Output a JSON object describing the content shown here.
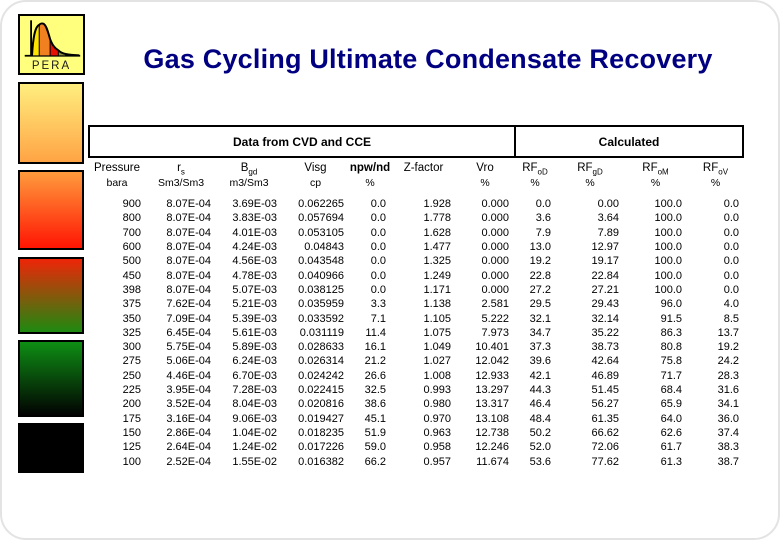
{
  "slide": {
    "title": "Gas Cycling Ultimate Condensate Recovery",
    "title_color": "#000080"
  },
  "logo": {
    "label": "PERA",
    "background": "#FFFF7D",
    "slice_colors": [
      "#FFE400",
      "#F08020",
      "#E81000",
      "#8A8A40"
    ]
  },
  "sidebar": {
    "bars": [
      {
        "from": "#FFEE7E",
        "to": "#FFA445"
      },
      {
        "from": "#FF9B3C",
        "to": "#FF1503"
      },
      {
        "from": "#EE2508",
        "to": "#1E8A10"
      },
      {
        "from": "#0E8E14",
        "to": "#020202"
      },
      {
        "from": "#000000",
        "to": "#000000"
      }
    ]
  },
  "table": {
    "group_headers": {
      "left": "Data from CVD and CCE",
      "right": "Calculated"
    },
    "columns": [
      {
        "base": "Pressure",
        "sub": "",
        "unit": "bara",
        "bold": false
      },
      {
        "base": "r",
        "sub": "s",
        "unit": "Sm3/Sm3",
        "bold": false
      },
      {
        "base": "B",
        "sub": "gd",
        "unit": "m3/Sm3",
        "bold": false
      },
      {
        "base": "Visg",
        "sub": "",
        "unit": "cp",
        "bold": false
      },
      {
        "base": "npw/nd",
        "sub": "",
        "unit": "%",
        "bold": true
      },
      {
        "base": "Z-factor",
        "sub": "",
        "unit": "",
        "bold": false
      },
      {
        "base": "Vro",
        "sub": "",
        "unit": "%",
        "bold": false
      },
      {
        "base": "RF",
        "sub": "oD",
        "unit": "%",
        "bold": false
      },
      {
        "base": "RF",
        "sub": "gD",
        "unit": "%",
        "bold": false
      },
      {
        "base": "RF",
        "sub": "oM",
        "unit": "%",
        "bold": false
      },
      {
        "base": "RF",
        "sub": "oV",
        "unit": "%",
        "bold": false
      }
    ],
    "rows": [
      [
        "900",
        "8.07E-04",
        "3.69E-03",
        "0.062265",
        "0.0",
        "1.928",
        "0.000",
        "0.0",
        "0.00",
        "100.0",
        "0.0"
      ],
      [
        "800",
        "8.07E-04",
        "3.83E-03",
        "0.057694",
        "0.0",
        "1.778",
        "0.000",
        "3.6",
        "3.64",
        "100.0",
        "0.0"
      ],
      [
        "700",
        "8.07E-04",
        "4.01E-03",
        "0.053105",
        "0.0",
        "1.628",
        "0.000",
        "7.9",
        "7.89",
        "100.0",
        "0.0"
      ],
      [
        "600",
        "8.07E-04",
        "4.24E-03",
        "0.04843",
        "0.0",
        "1.477",
        "0.000",
        "13.0",
        "12.97",
        "100.0",
        "0.0"
      ],
      [
        "500",
        "8.07E-04",
        "4.56E-03",
        "0.043548",
        "0.0",
        "1.325",
        "0.000",
        "19.2",
        "19.17",
        "100.0",
        "0.0"
      ],
      [
        "450",
        "8.07E-04",
        "4.78E-03",
        "0.040966",
        "0.0",
        "1.249",
        "0.000",
        "22.8",
        "22.84",
        "100.0",
        "0.0"
      ],
      [
        "398",
        "8.07E-04",
        "5.07E-03",
        "0.038125",
        "0.0",
        "1.171",
        "0.000",
        "27.2",
        "27.21",
        "100.0",
        "0.0"
      ],
      [
        "375",
        "7.62E-04",
        "5.21E-03",
        "0.035959",
        "3.3",
        "1.138",
        "2.581",
        "29.5",
        "29.43",
        "96.0",
        "4.0"
      ],
      [
        "350",
        "7.09E-04",
        "5.39E-03",
        "0.033592",
        "7.1",
        "1.105",
        "5.222",
        "32.1",
        "32.14",
        "91.5",
        "8.5"
      ],
      [
        "325",
        "6.45E-04",
        "5.61E-03",
        "0.031119",
        "11.4",
        "1.075",
        "7.973",
        "34.7",
        "35.22",
        "86.3",
        "13.7"
      ],
      [
        "300",
        "5.75E-04",
        "5.89E-03",
        "0.028633",
        "16.1",
        "1.049",
        "10.401",
        "37.3",
        "38.73",
        "80.8",
        "19.2"
      ],
      [
        "275",
        "5.06E-04",
        "6.24E-03",
        "0.026314",
        "21.2",
        "1.027",
        "12.042",
        "39.6",
        "42.64",
        "75.8",
        "24.2"
      ],
      [
        "250",
        "4.46E-04",
        "6.70E-03",
        "0.024242",
        "26.6",
        "1.008",
        "12.933",
        "42.1",
        "46.89",
        "71.7",
        "28.3"
      ],
      [
        "225",
        "3.95E-04",
        "7.28E-03",
        "0.022415",
        "32.5",
        "0.993",
        "13.297",
        "44.3",
        "51.45",
        "68.4",
        "31.6"
      ],
      [
        "200",
        "3.52E-04",
        "8.04E-03",
        "0.020816",
        "38.6",
        "0.980",
        "13.317",
        "46.4",
        "56.27",
        "65.9",
        "34.1"
      ],
      [
        "175",
        "3.16E-04",
        "9.06E-03",
        "0.019427",
        "45.1",
        "0.970",
        "13.108",
        "48.4",
        "61.35",
        "64.0",
        "36.0"
      ],
      [
        "150",
        "2.86E-04",
        "1.04E-02",
        "0.018235",
        "51.9",
        "0.963",
        "12.738",
        "50.2",
        "66.62",
        "62.6",
        "37.4"
      ],
      [
        "125",
        "2.64E-04",
        "1.24E-02",
        "0.017226",
        "59.0",
        "0.958",
        "12.246",
        "52.0",
        "72.06",
        "61.7",
        "38.3"
      ],
      [
        "100",
        "2.52E-04",
        "1.55E-02",
        "0.016382",
        "66.2",
        "0.957",
        "11.674",
        "53.6",
        "77.62",
        "61.3",
        "38.7"
      ]
    ]
  }
}
